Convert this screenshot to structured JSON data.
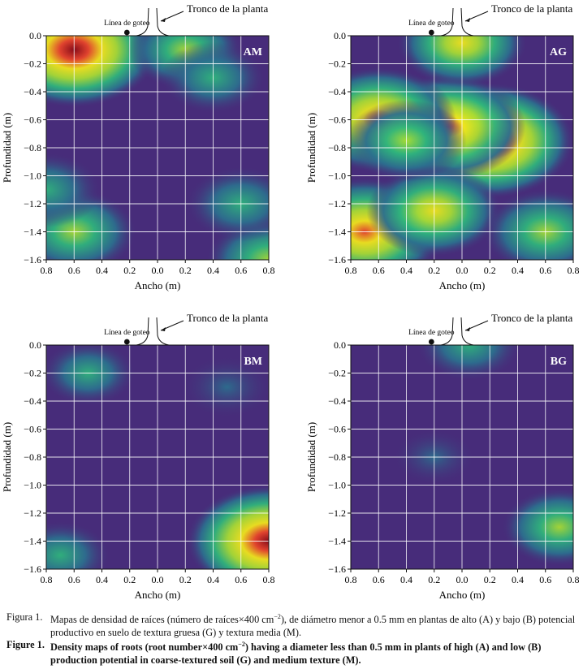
{
  "colors": {
    "low": "#472c7a",
    "mid_low": "#2c6e8e",
    "mid": "#2fb47c",
    "mid_high": "#a8db34",
    "high": "#f0e51c",
    "hot": "#e8442a",
    "max": "#8b0a14"
  },
  "annotations": {
    "trunk_label": "Tronco de la planta",
    "drip_label": "Línea de goteo"
  },
  "chart_data": [
    {
      "type": "heatmap",
      "panel_label": "AM",
      "xlabel": "Ancho (m)",
      "ylabel": "Profundidad (m)",
      "xlim": [
        -0.8,
        0.8
      ],
      "ylim": [
        -1.6,
        0.0
      ],
      "x_ticks": [
        "0.8",
        "0.6",
        "0.4",
        "0.2",
        "0.0",
        "0.2",
        "0.4",
        "0.6",
        "0.8"
      ],
      "y_ticks": [
        "0.0",
        "−0.2",
        "−0.4",
        "−0.6",
        "−0.8",
        "−1.0",
        "−1.2",
        "−1.4",
        "−1.6"
      ],
      "grid": true,
      "hotspots": [
        {
          "x": -0.6,
          "y": -0.1,
          "intensity": 1.0
        },
        {
          "x": -0.6,
          "y": -1.4,
          "intensity": 0.55
        },
        {
          "x": 0.2,
          "y": -0.1,
          "intensity": 0.45
        },
        {
          "x": 0.8,
          "y": -1.6,
          "intensity": 0.55
        },
        {
          "x": -0.8,
          "y": -1.1,
          "intensity": 0.4
        },
        {
          "x": 0.6,
          "y": -1.2,
          "intensity": 0.4
        },
        {
          "x": 0.4,
          "y": -0.3,
          "intensity": 0.35
        }
      ]
    },
    {
      "type": "heatmap",
      "panel_label": "AG",
      "xlabel": "Ancho (m)",
      "ylabel": "Profundidad (m)",
      "xlim": [
        -0.8,
        0.8
      ],
      "ylim": [
        -1.6,
        0.0
      ],
      "x_ticks": [
        "0.8",
        "0.6",
        "0.4",
        "0.2",
        "0.0",
        "0.2",
        "0.4",
        "0.6",
        "0.8"
      ],
      "y_ticks": [
        "0.0",
        "−0.2",
        "−0.4",
        "−0.6",
        "−0.8",
        "−1.0",
        "−1.2",
        "−1.4",
        "−1.6"
      ],
      "grid": true,
      "hotspots": [
        {
          "x": 0.2,
          "y": -0.75,
          "intensity": 1.0
        },
        {
          "x": -0.1,
          "y": -0.65,
          "intensity": 0.85
        },
        {
          "x": -0.6,
          "y": -0.6,
          "intensity": 0.85
        },
        {
          "x": -0.7,
          "y": -1.4,
          "intensity": 0.9
        },
        {
          "x": -0.2,
          "y": -1.25,
          "intensity": 0.65
        },
        {
          "x": 0.6,
          "y": -1.4,
          "intensity": 0.55
        },
        {
          "x": 0.0,
          "y": -0.05,
          "intensity": 0.6
        },
        {
          "x": -0.4,
          "y": -0.75,
          "intensity": 0.5
        }
      ]
    },
    {
      "type": "heatmap",
      "panel_label": "BM",
      "xlabel": "Ancho (m)",
      "ylabel": "Profundidad (m)",
      "xlim": [
        -0.8,
        0.8
      ],
      "ylim": [
        -1.6,
        0.0
      ],
      "x_ticks": [
        "0.8",
        "0.6",
        "0.4",
        "0.2",
        "0.0",
        "0.2",
        "0.4",
        "0.6",
        "0.8"
      ],
      "y_ticks": [
        "0.0",
        "−0.2",
        "−0.4",
        "−0.6",
        "−0.8",
        "−1.0",
        "−1.2",
        "−1.4",
        "−1.6"
      ],
      "grid": true,
      "hotspots": [
        {
          "x": 0.8,
          "y": -1.4,
          "intensity": 0.95
        },
        {
          "x": -0.7,
          "y": -1.5,
          "intensity": 0.3
        },
        {
          "x": -0.5,
          "y": -0.2,
          "intensity": 0.25
        },
        {
          "x": 0.5,
          "y": -0.3,
          "intensity": 0.22
        }
      ]
    },
    {
      "type": "heatmap",
      "panel_label": "BG",
      "xlabel": "Ancho (m)",
      "ylabel": "Profundidad (m)",
      "xlim": [
        -0.8,
        0.8
      ],
      "ylim": [
        -1.6,
        0.0
      ],
      "x_ticks": [
        "0.8",
        "0.6",
        "0.4",
        "0.2",
        "0.0",
        "0.2",
        "0.4",
        "0.6",
        "0.8"
      ],
      "y_ticks": [
        "0.0",
        "−0.2",
        "−0.4",
        "−0.6",
        "−0.8",
        "−1.0",
        "−1.2",
        "−1.4",
        "−1.6"
      ],
      "grid": true,
      "hotspots": [
        {
          "x": 0.7,
          "y": -1.3,
          "intensity": 0.45
        },
        {
          "x": 0.05,
          "y": 0.0,
          "intensity": 0.35
        },
        {
          "x": -0.2,
          "y": -0.8,
          "intensity": 0.12
        }
      ]
    }
  ],
  "caption_es": {
    "label": "Figura 1.",
    "text_before": "Mapas de densidad de raíces (número de raíces×400 cm",
    "exponent": "−2",
    "text_after": "), de diámetro menor a 0.5 mm en plantas de alto (A) y bajo (B) potencial productivo en suelo de textura gruesa (G) y textura media (M)."
  },
  "caption_en": {
    "label": "Figure 1.",
    "text_before": "Density maps of roots (root number×400 cm",
    "exponent": "−2",
    "text_after": ") having a diameter less than 0.5 mm in plants of high (A) and low (B) production potential in coarse-textured soil (G) and medium texture (M)."
  }
}
